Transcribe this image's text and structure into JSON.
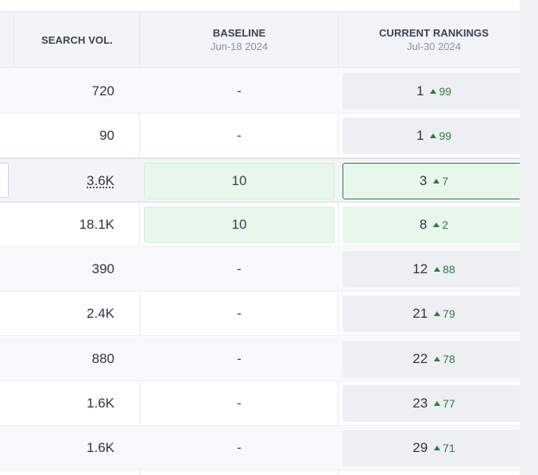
{
  "columns": {
    "search_vol": "SEARCH VOL.",
    "baseline": {
      "title": "BASELINE",
      "date": "Jun-18 2024"
    },
    "current": {
      "title": "CURRENT RANKINGS",
      "date": "Jul-30 2024"
    }
  },
  "rows": [
    {
      "vol": "720",
      "baseline": "-",
      "rank": "1",
      "change": "99"
    },
    {
      "vol": "90",
      "baseline": "-",
      "rank": "1",
      "change": "99"
    },
    {
      "vol": "3.6K",
      "baseline": "10",
      "rank": "3",
      "change": "7"
    },
    {
      "vol": "18.1K",
      "baseline": "10",
      "rank": "8",
      "change": "2"
    },
    {
      "vol": "390",
      "baseline": "-",
      "rank": "12",
      "change": "88"
    },
    {
      "vol": "2.4K",
      "baseline": "-",
      "rank": "21",
      "change": "79"
    },
    {
      "vol": "880",
      "baseline": "-",
      "rank": "22",
      "change": "78"
    },
    {
      "vol": "1.6K",
      "baseline": "-",
      "rank": "23",
      "change": "77"
    },
    {
      "vol": "1.6K",
      "baseline": "-",
      "rank": "29",
      "change": "71"
    }
  ],
  "colors": {
    "improve": "#2d7a47",
    "baseline_highlight": "#e8f7eb"
  },
  "icons": {
    "change": "triangle-up-icon"
  }
}
